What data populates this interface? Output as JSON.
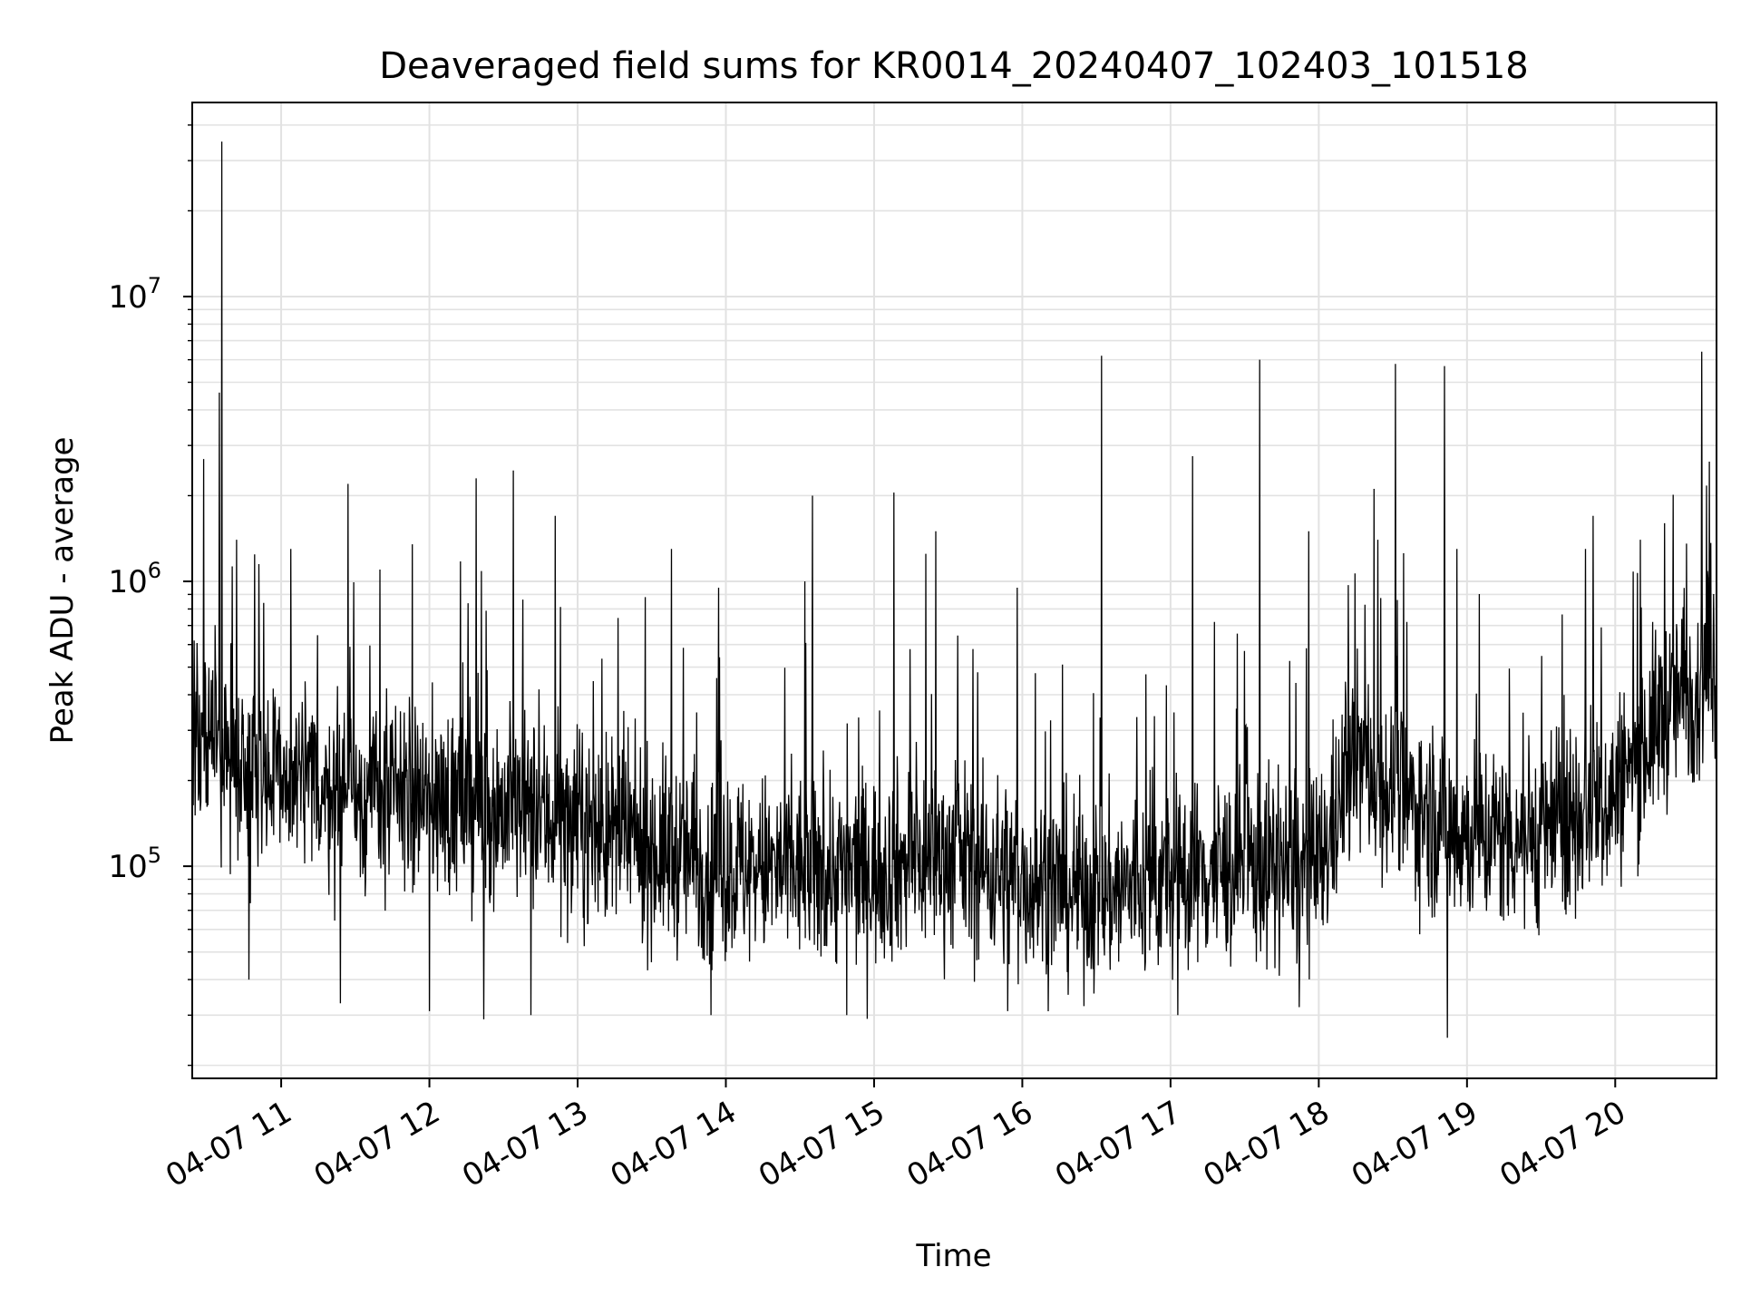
{
  "chart_data": {
    "type": "line",
    "title": "Deaveraged field sums for KR0014_20240407_102403_101518",
    "xlabel": "Time",
    "ylabel": "Peak ADU - average",
    "yscale": "log",
    "ylim": [
      18000,
      48000000
    ],
    "xlim": [
      "04-07 10:24",
      "04-07 20:41"
    ],
    "grid": true,
    "line_color": "#000000",
    "x_ticks": [
      {
        "label": "04-07 11",
        "value": "04-07 11:00"
      },
      {
        "label": "04-07 12",
        "value": "04-07 12:00"
      },
      {
        "label": "04-07 13",
        "value": "04-07 13:00"
      },
      {
        "label": "04-07 14",
        "value": "04-07 14:00"
      },
      {
        "label": "04-07 15",
        "value": "04-07 15:00"
      },
      {
        "label": "04-07 16",
        "value": "04-07 16:00"
      },
      {
        "label": "04-07 17",
        "value": "04-07 17:00"
      },
      {
        "label": "04-07 18",
        "value": "04-07 18:00"
      },
      {
        "label": "04-07 19",
        "value": "04-07 19:00"
      },
      {
        "label": "04-07 20",
        "value": "04-07 20:00"
      }
    ],
    "y_ticks": [
      {
        "base": "10",
        "exp": "5",
        "value": 100000
      },
      {
        "base": "10",
        "exp": "6",
        "value": 1000000
      },
      {
        "base": "10",
        "exp": "7",
        "value": 10000000
      }
    ],
    "series": [
      {
        "baseline": [
          [
            "04-07 10:24",
            300000
          ],
          [
            "04-07 10:40",
            250000
          ],
          [
            "04-07 11:00",
            200000
          ],
          [
            "04-07 11:30",
            180000
          ],
          [
            "04-07 12:00",
            170000
          ],
          [
            "04-07 12:30",
            160000
          ],
          [
            "04-07 13:00",
            140000
          ],
          [
            "04-07 13:30",
            115000
          ],
          [
            "04-07 14:00",
            100000
          ],
          [
            "04-07 14:30",
            95000
          ],
          [
            "04-07 15:00",
            98000
          ],
          [
            "04-07 15:30",
            110000
          ],
          [
            "04-07 16:00",
            90000
          ],
          [
            "04-07 16:30",
            80000
          ],
          [
            "04-07 17:00",
            90000
          ],
          [
            "04-07 17:30",
            100000
          ],
          [
            "04-07 18:00",
            95000
          ],
          [
            "04-07 18:15",
            250000
          ],
          [
            "04-07 18:30",
            180000
          ],
          [
            "04-07 19:00",
            130000
          ],
          [
            "04-07 19:30",
            130000
          ],
          [
            "04-07 20:00",
            180000
          ],
          [
            "04-07 20:20",
            350000
          ],
          [
            "04-07 20:41",
            520000
          ]
        ],
        "spikes": [
          [
            "04-07 10:35",
            4600000
          ],
          [
            "04-07 10:36",
            35000000
          ],
          [
            "04-07 10:42",
            1400000
          ],
          [
            "04-07 10:51",
            1150000
          ],
          [
            "04-07 11:04",
            1300000
          ],
          [
            "04-07 11:27",
            2200000
          ],
          [
            "04-07 11:40",
            1100000
          ],
          [
            "04-07 11:53",
            1350000
          ],
          [
            "04-07 12:19",
            2300000
          ],
          [
            "04-07 12:34",
            2450000
          ],
          [
            "04-07 12:51",
            1700000
          ],
          [
            "04-07 13:38",
            1300000
          ],
          [
            "04-07 13:57",
            950000
          ],
          [
            "04-07 14:32",
            1000000
          ],
          [
            "04-07 14:35",
            2000000
          ],
          [
            "04-07 15:08",
            2050000
          ],
          [
            "04-07 15:21",
            1250000
          ],
          [
            "04-07 15:25",
            1500000
          ],
          [
            "04-07 15:58",
            950000
          ],
          [
            "04-07 16:32",
            6200000
          ],
          [
            "04-07 17:09",
            2750000
          ],
          [
            "04-07 17:36",
            6000000
          ],
          [
            "04-07 17:56",
            1500000
          ],
          [
            "04-07 18:24",
            1400000
          ],
          [
            "04-07 18:31",
            5800000
          ],
          [
            "04-07 18:51",
            5700000
          ],
          [
            "04-07 18:56",
            1300000
          ],
          [
            "04-07 19:48",
            1300000
          ],
          [
            "04-07 19:51",
            1700000
          ],
          [
            "04-07 20:20",
            1600000
          ],
          [
            "04-07 20:35",
            6400000
          ]
        ],
        "dips": [
          [
            "04-07 10:47",
            40000
          ],
          [
            "04-07 11:24",
            33000
          ],
          [
            "04-07 12:00",
            31000
          ],
          [
            "04-07 12:22",
            29000
          ],
          [
            "04-07 12:41",
            30000
          ],
          [
            "04-07 13:54",
            30000
          ],
          [
            "04-07 14:49",
            30000
          ],
          [
            "04-07 15:54",
            31000
          ],
          [
            "04-07 17:03",
            30000
          ],
          [
            "04-07 17:52",
            32000
          ],
          [
            "04-07 18:52",
            25000
          ]
        ]
      }
    ]
  }
}
